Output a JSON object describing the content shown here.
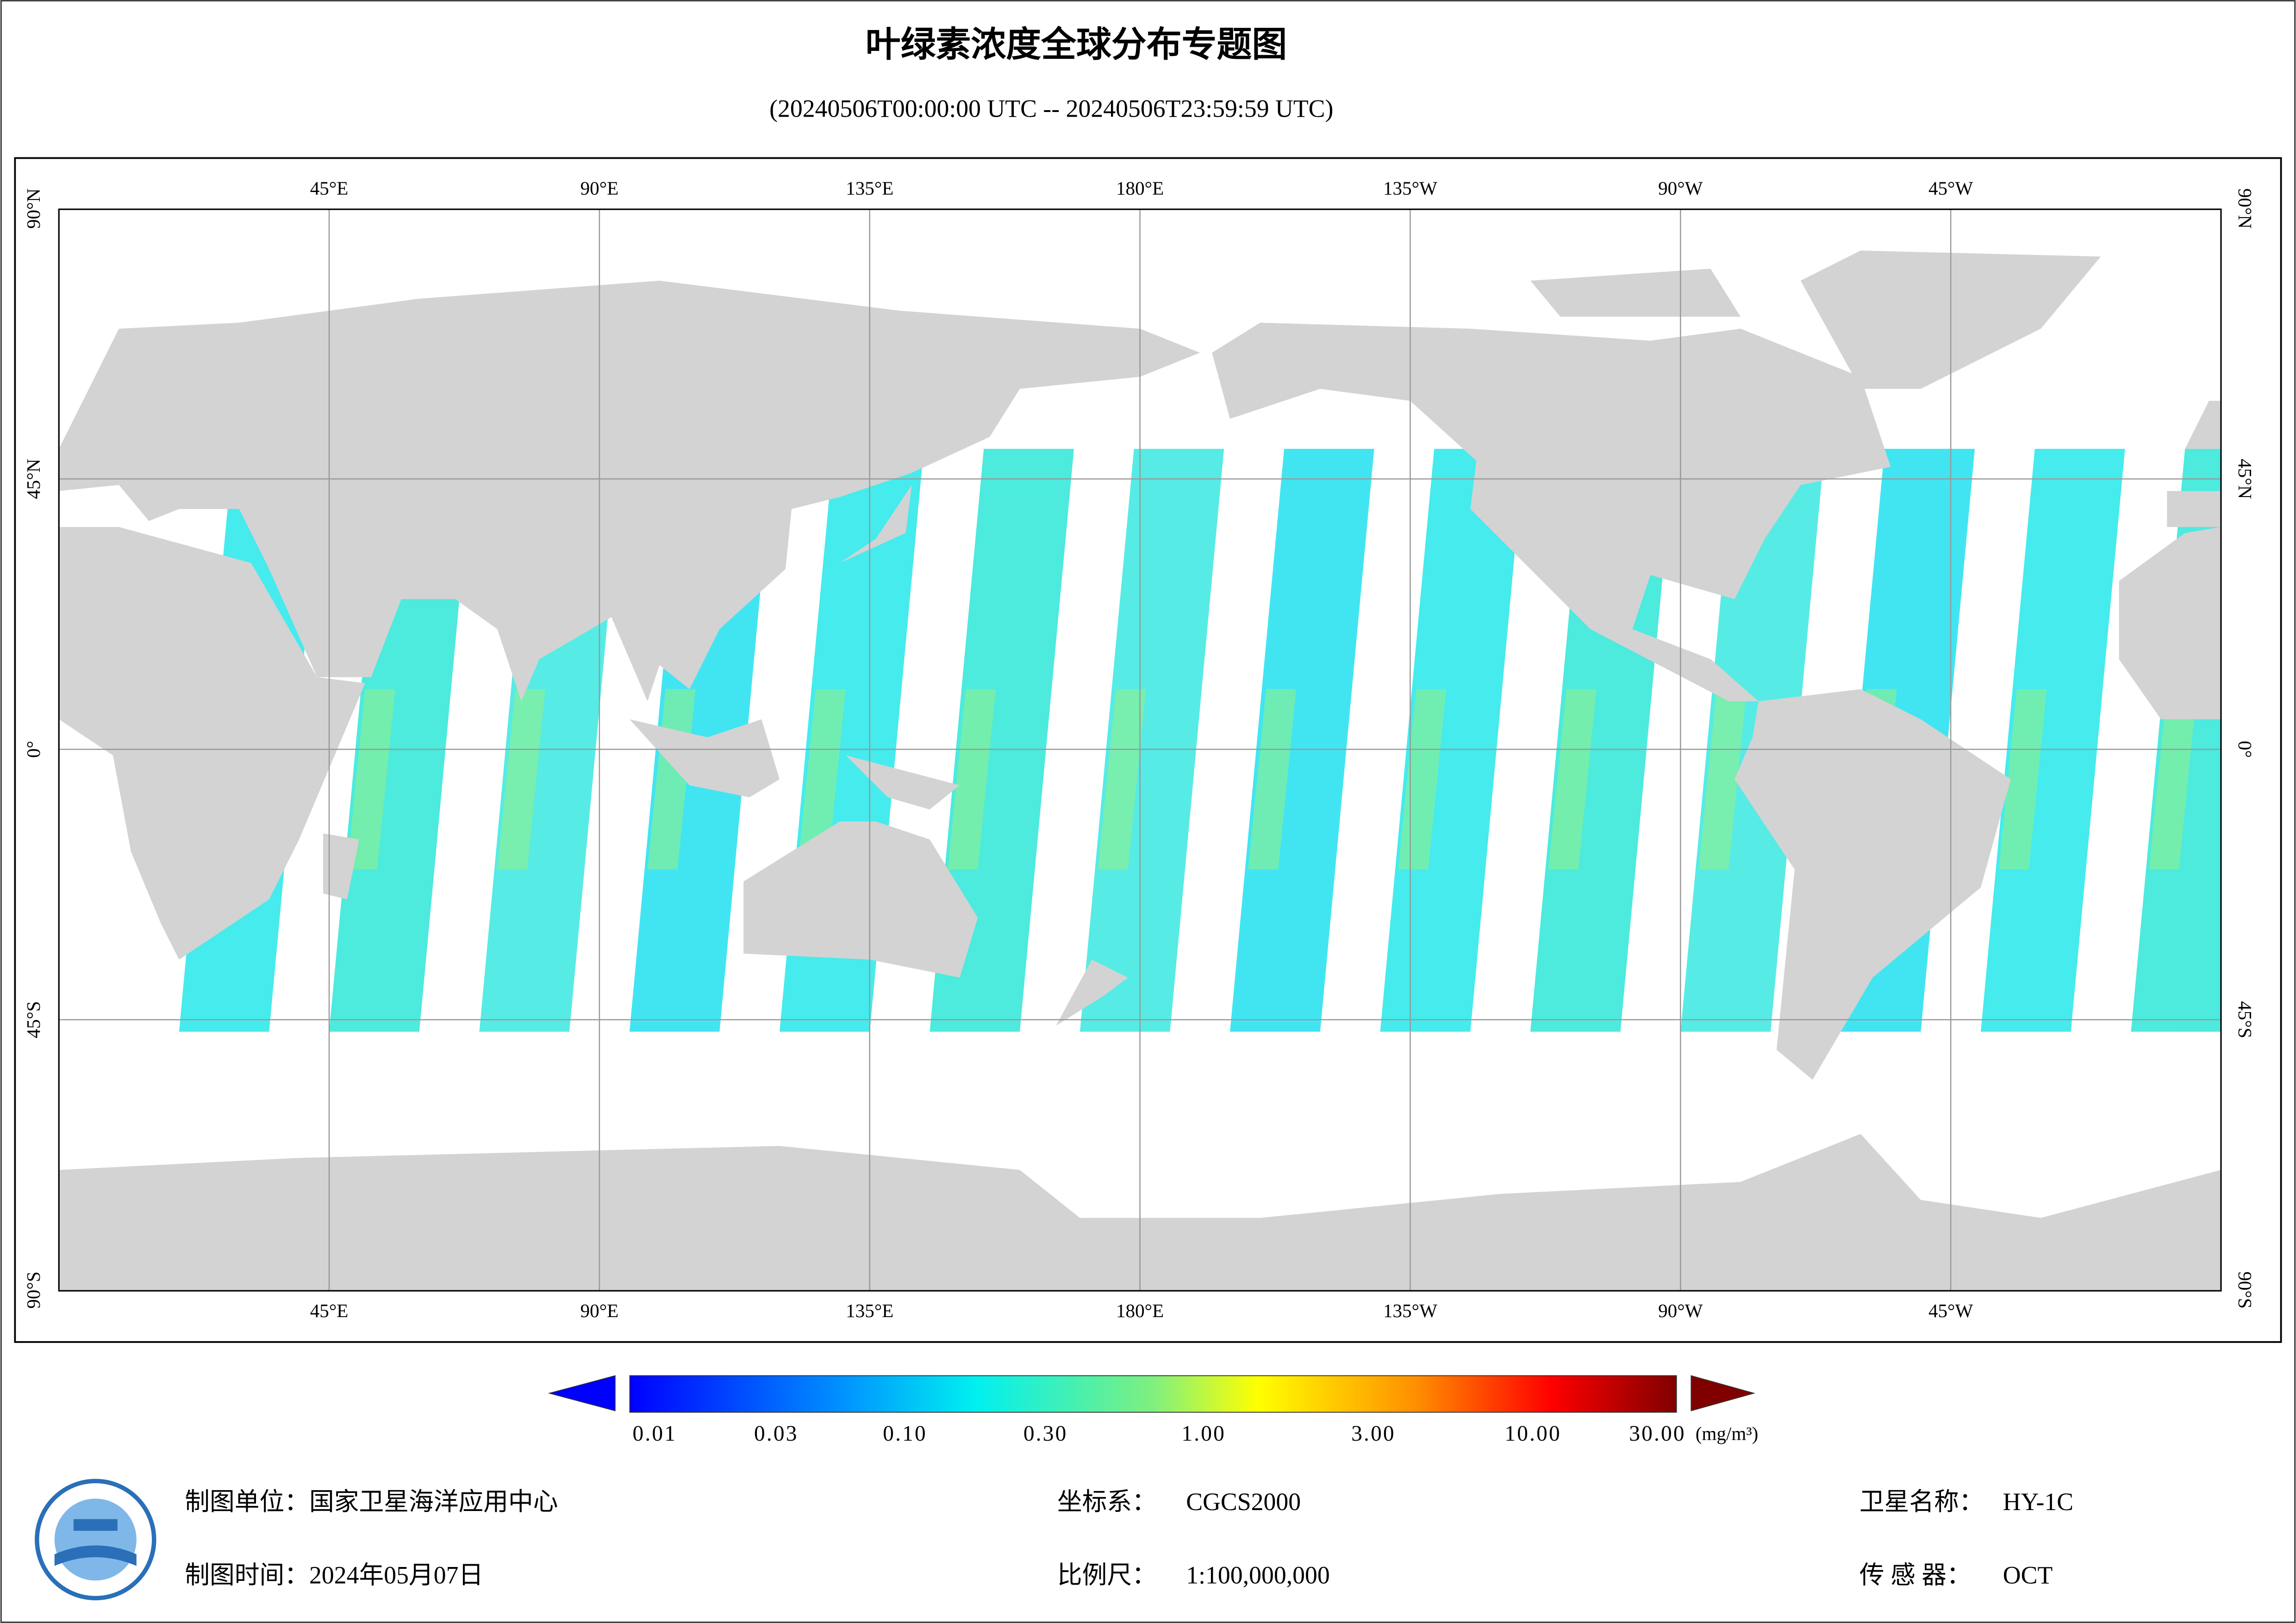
{
  "header": {
    "title": "叶绿素浓度全球分布专题图",
    "subtitle": "(20240506T00:00:00 UTC -- 20240506T23:59:59 UTC)"
  },
  "map": {
    "lon_labels": [
      "45°E",
      "90°E",
      "135°E",
      "180°E",
      "135°W",
      "90°W",
      "45°W"
    ],
    "lat_labels": [
      "90°N",
      "45°N",
      "0°",
      "45°S",
      "90°S"
    ]
  },
  "colorbar": {
    "labels": [
      "0.01",
      "0.03",
      "0.10",
      "0.30",
      "1.00",
      "3.00",
      "10.00",
      "30.00"
    ],
    "unit": "(mg/m³)"
  },
  "footer": {
    "unit": "制图单位：国家卫星海洋应用中心",
    "date": "制图时间：2024年05月07日",
    "crs_label": "坐标系：",
    "crs": "CGCS2000",
    "scale_label": "比例尺：",
    "scale": "1:100,000,000",
    "satellite_label": "卫星名称：",
    "satellite": "HY-1C",
    "sensor_label": "传 感 器：",
    "sensor": "OCT"
  }
}
